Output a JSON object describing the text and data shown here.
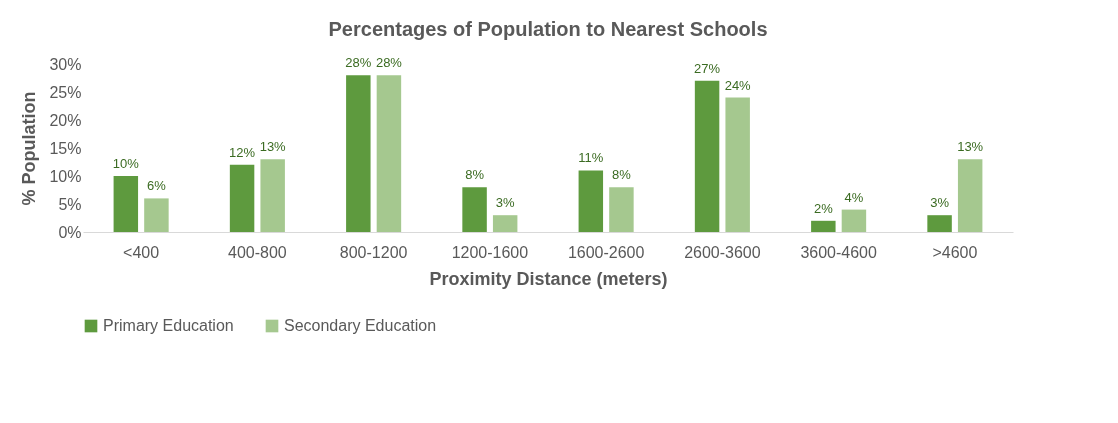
{
  "chart_data": {
    "type": "bar",
    "title": "Percentages of Population to Nearest Schools",
    "xlabel": "Proximity Distance (meters)",
    "ylabel": "% Population",
    "categories": [
      "<400",
      "400-800",
      "800-1200",
      "1200-1600",
      "1600-2600",
      "2600-3600",
      "3600-4600",
      ">4600"
    ],
    "series": [
      {
        "name": "Primary Education",
        "color": "#5e9a3e",
        "values": [
          10,
          12,
          28,
          8,
          11,
          27,
          2,
          3
        ],
        "value_labels": [
          "10%",
          "12%",
          "28%",
          "8%",
          "11%",
          "27%",
          "2%",
          "3%"
        ]
      },
      {
        "name": "Secondary Education",
        "color": "#a5c88f",
        "values": [
          6,
          13,
          28,
          3,
          8,
          24,
          4,
          13
        ],
        "value_labels": [
          "6%",
          "13%",
          "28%",
          "3%",
          "8%",
          "24%",
          "4%",
          "13%"
        ]
      }
    ],
    "ylim": [
      0,
      30
    ],
    "yticks": [
      {
        "value": 0,
        "label": "0%"
      },
      {
        "value": 5,
        "label": "5%"
      },
      {
        "value": 10,
        "label": "10%"
      },
      {
        "value": 15,
        "label": "15%"
      },
      {
        "value": 20,
        "label": "20%"
      },
      {
        "value": 25,
        "label": "25%"
      },
      {
        "value": 30,
        "label": "30%"
      }
    ],
    "grid": false,
    "legend": "bottom"
  }
}
